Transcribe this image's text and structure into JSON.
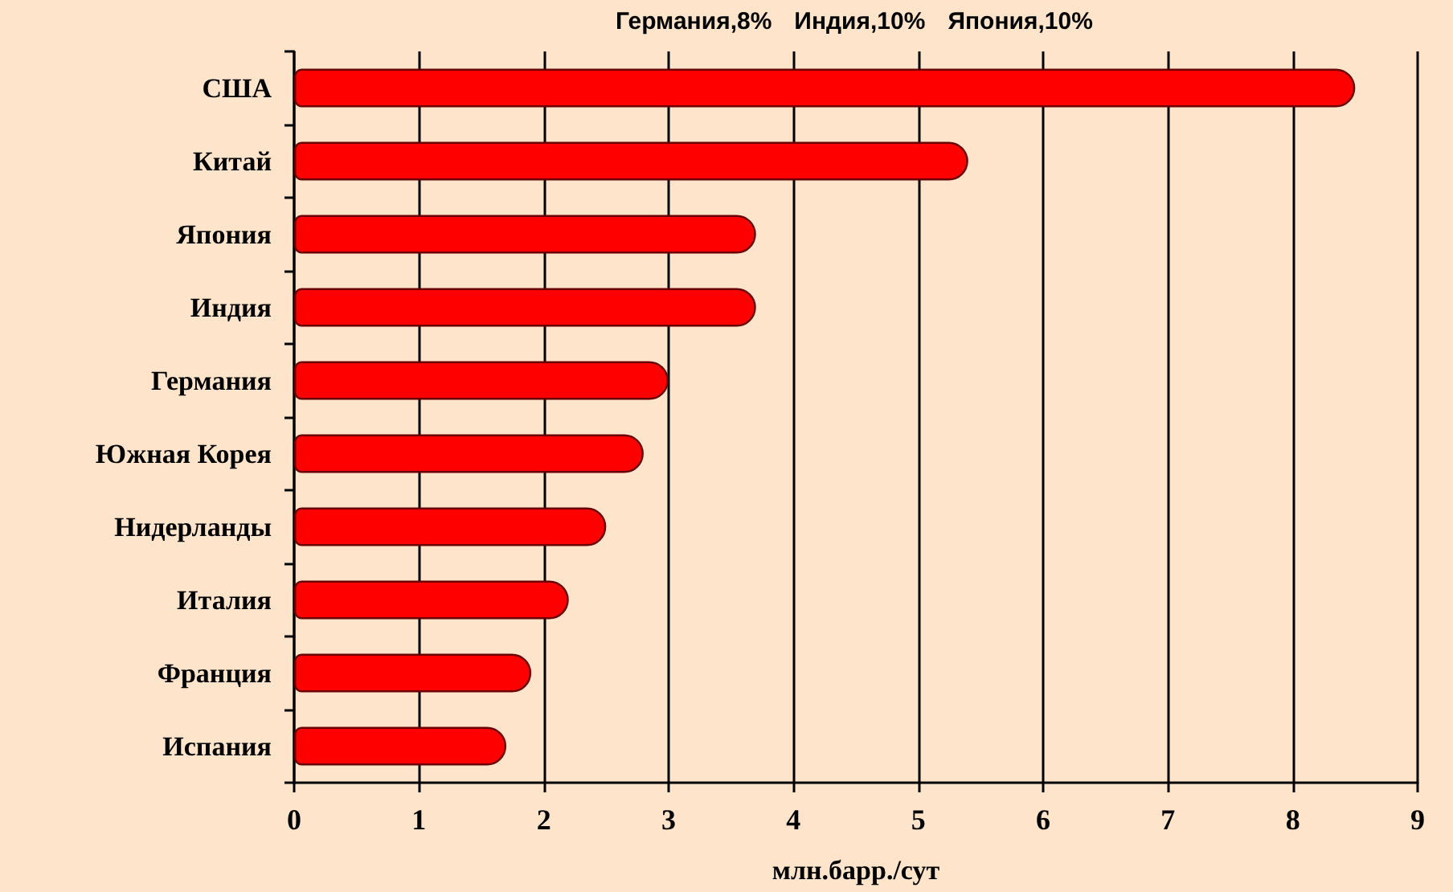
{
  "chart_data": {
    "type": "bar",
    "orientation": "horizontal",
    "categories": [
      "США",
      "Китай",
      "Япония",
      "Индия",
      "Германия",
      "Южная Корея",
      "Нидерланды",
      "Италия",
      "Франция",
      "Испания"
    ],
    "values": [
      8.5,
      5.4,
      3.7,
      3.7,
      3.0,
      2.8,
      2.5,
      2.2,
      1.9,
      1.7
    ],
    "color": "#ff0000",
    "xlabel": "млн.барр./сут",
    "xlim": [
      0,
      9
    ],
    "xticks": [
      0,
      1,
      2,
      3,
      4,
      5,
      6,
      7,
      8,
      9
    ],
    "grid": "x",
    "annotations": [
      "Германия,8%",
      "Индия,10%",
      "Япония,10%"
    ]
  }
}
